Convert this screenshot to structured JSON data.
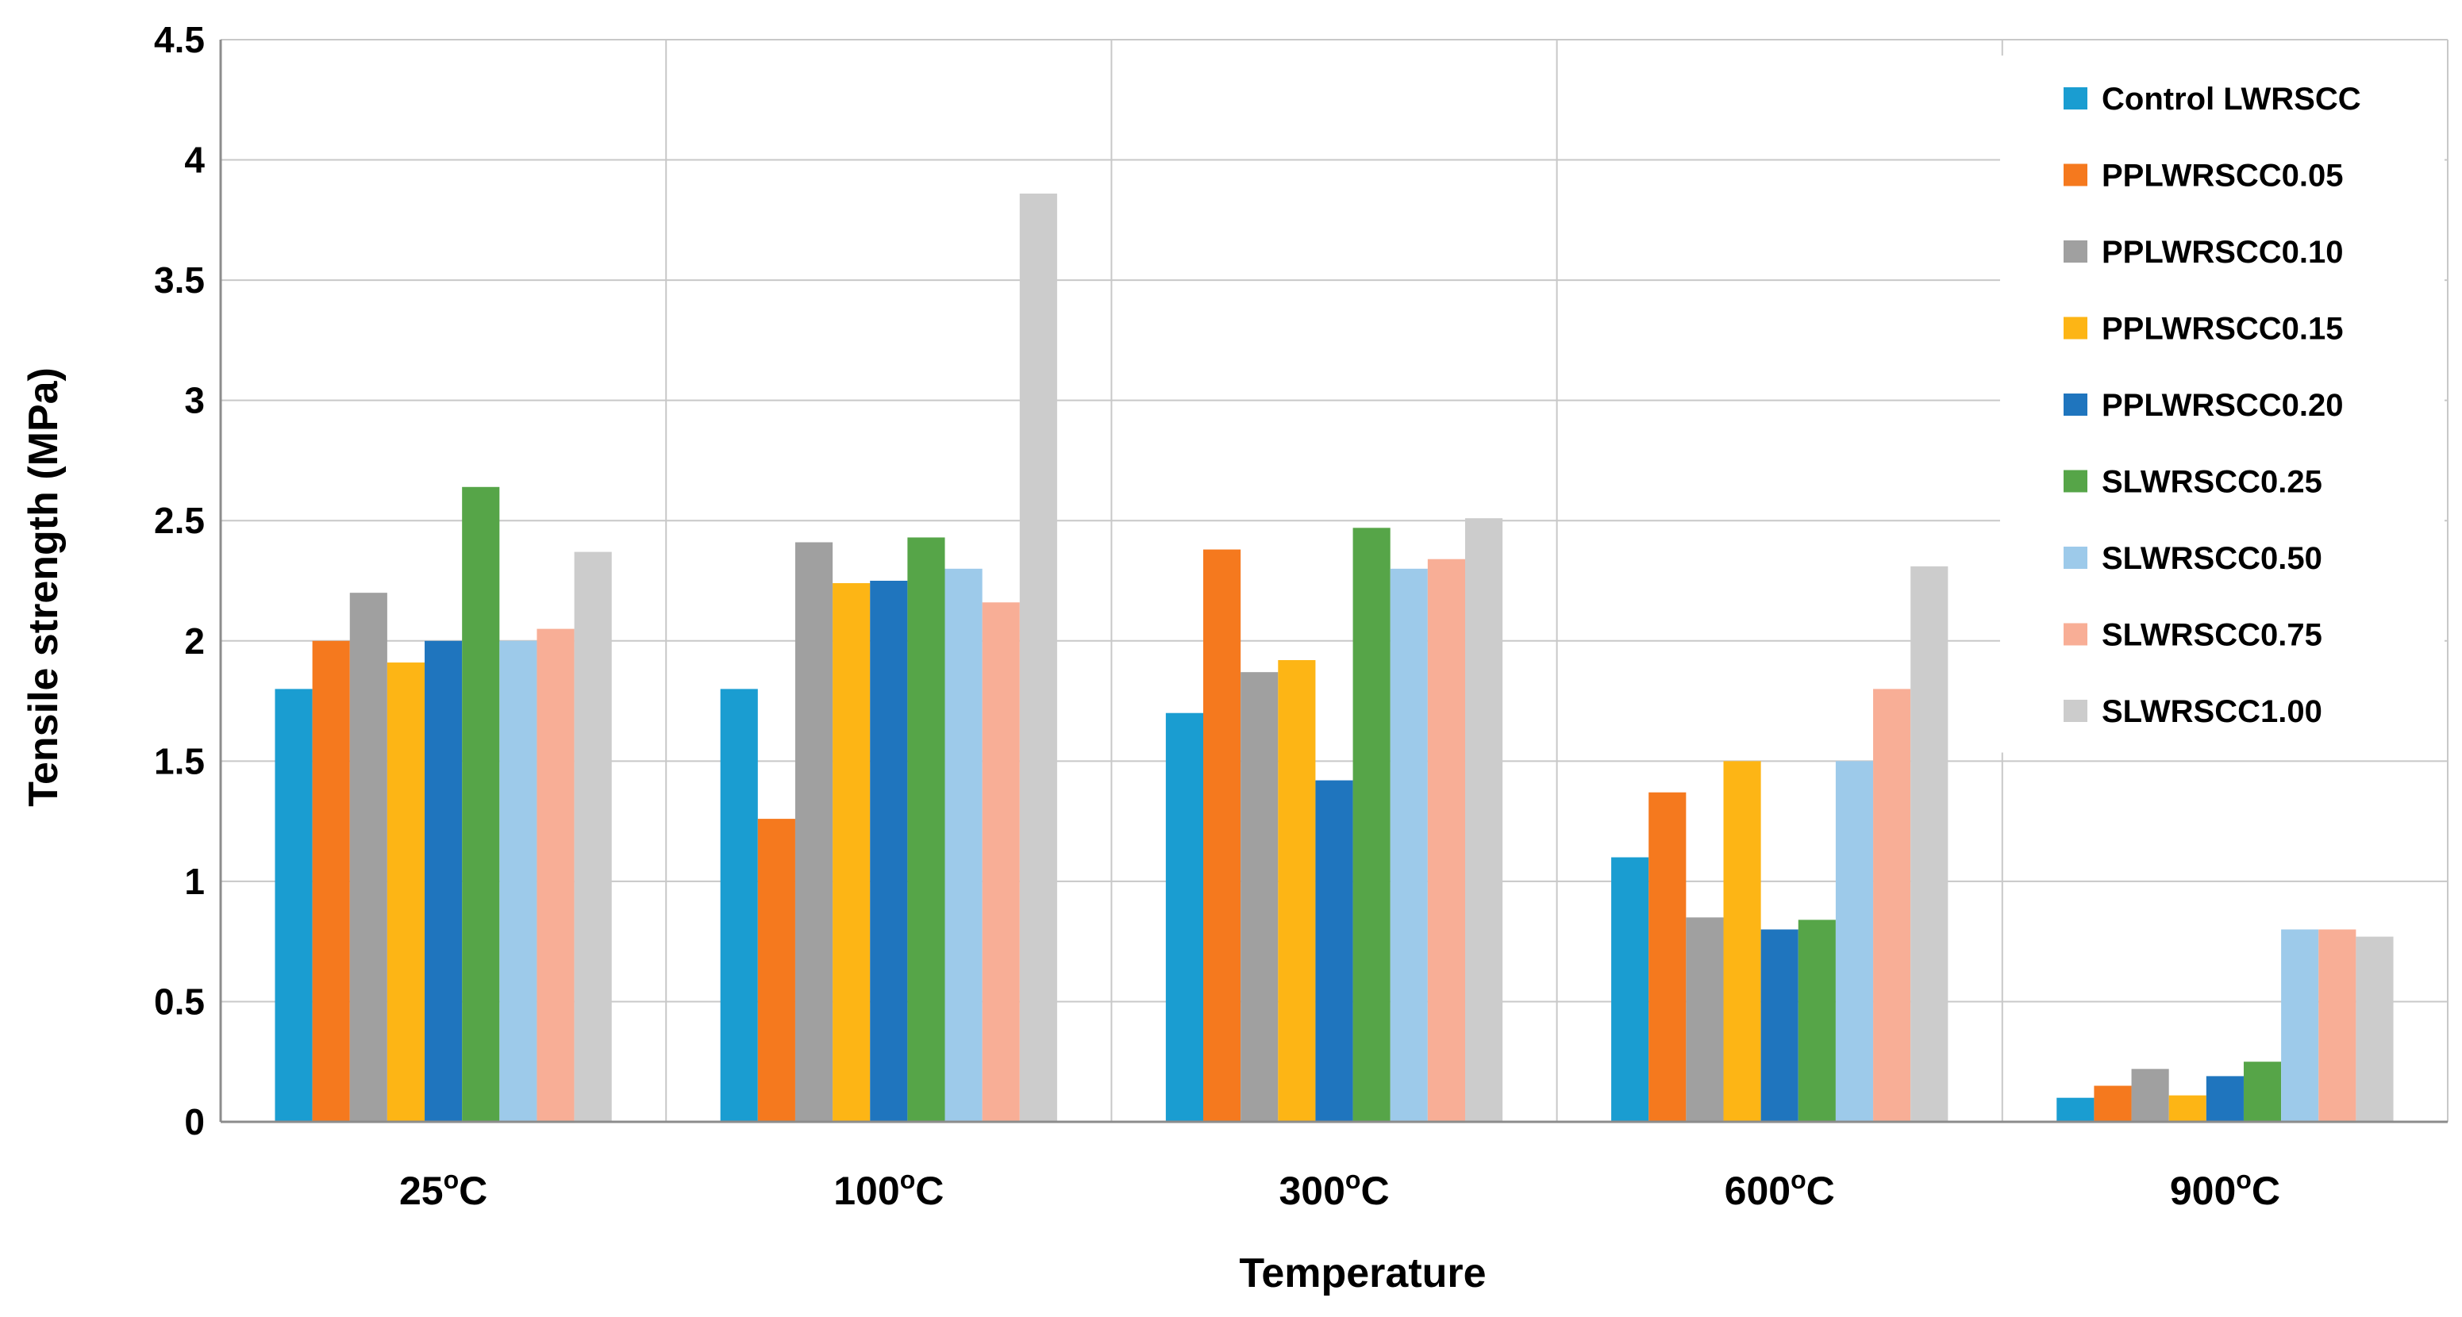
{
  "chart_data": {
    "type": "bar",
    "title": "",
    "xlabel": "Temperature",
    "ylabel": "Tensile strength (MPa)",
    "ylim": [
      0,
      4.5
    ],
    "yticks": [
      "0",
      "0.5",
      "1",
      "1.5",
      "2",
      "2.5",
      "3",
      "3.5",
      "4",
      "4.5"
    ],
    "categories": [
      {
        "value": "25",
        "sup": "o",
        "unit": "C"
      },
      {
        "value": "100",
        "sup": "o",
        "unit": "C"
      },
      {
        "value": "300",
        "sup": "o",
        "unit": "C"
      },
      {
        "value": "600",
        "sup": "o",
        "unit": "C"
      },
      {
        "value": "900",
        "sup": "o",
        "unit": "C"
      }
    ],
    "legend_position": "top-right",
    "grid": {
      "horizontal": true,
      "vertical_category_separators": true
    },
    "series": [
      {
        "name": "Control LWRSCC",
        "color": "#1A9DD1",
        "values": [
          1.8,
          1.8,
          1.7,
          1.1,
          0.1
        ]
      },
      {
        "name": "PPLWRSCC0.05",
        "color": "#F5791E",
        "values": [
          2.0,
          1.26,
          2.38,
          1.37,
          0.15
        ]
      },
      {
        "name": "PPLWRSCC0.10",
        "color": "#A0A0A0",
        "values": [
          2.2,
          2.41,
          1.87,
          0.85,
          0.22
        ]
      },
      {
        "name": "PPLWRSCC0.15",
        "color": "#FDB515",
        "values": [
          1.91,
          2.24,
          1.92,
          1.5,
          0.11
        ]
      },
      {
        "name": "PPLWRSCC0.20",
        "color": "#1F75BE",
        "values": [
          2.0,
          2.25,
          1.42,
          0.8,
          0.19
        ]
      },
      {
        "name": "SLWRSCC0.25",
        "color": "#56A548",
        "values": [
          2.64,
          2.43,
          2.47,
          0.84,
          0.25
        ]
      },
      {
        "name": "SLWRSCC0.50",
        "color": "#9DCAEA",
        "values": [
          2.0,
          2.3,
          2.3,
          1.5,
          0.8
        ]
      },
      {
        "name": "SLWRSCC0.75",
        "color": "#F8AE96",
        "values": [
          2.05,
          2.16,
          2.34,
          1.8,
          0.8
        ]
      },
      {
        "name": "SLWRSCC1.00",
        "color": "#CCCCCC",
        "values": [
          2.37,
          3.86,
          2.51,
          2.31,
          0.77
        ]
      }
    ],
    "colors": {
      "grid": "#C8C8C8",
      "axis": "#8C8C8C",
      "background": "#FFFFFF"
    }
  }
}
